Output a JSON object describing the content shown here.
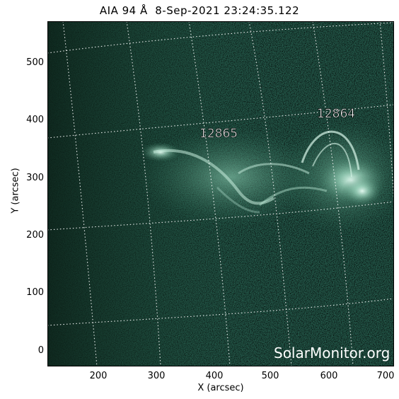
{
  "title": "AIA 94 Å  8-Sep-2021 23:24:35.122",
  "watermark": "SolarMonitor.org",
  "regions": [
    "12865",
    "12864"
  ],
  "xaxis": {
    "label": "X (arcsec)",
    "ticks": [
      "200",
      "300",
      "400",
      "500",
      "600",
      "700"
    ]
  },
  "yaxis": {
    "label": "Y (arcsec)",
    "ticks": [
      "0",
      "100",
      "200",
      "300",
      "400",
      "500"
    ]
  },
  "colors": {
    "background": "#1e4e3d",
    "plasma": "#dff5ec",
    "grid": "#ffffff"
  }
}
